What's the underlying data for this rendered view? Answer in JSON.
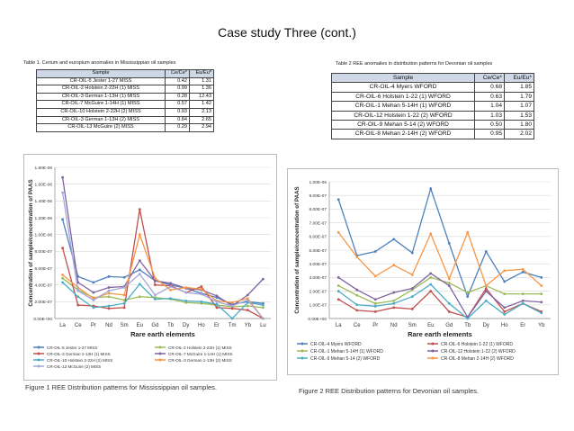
{
  "slide_title": "Case study Three (cont.)",
  "table1": {
    "caption": "Table 1. Cerium and europium anomalies in Mississippian oil samples",
    "headers": [
      "Sample",
      "Ce/Ce*",
      "Eu/Eu*"
    ],
    "rows": [
      [
        "CR-OIL-5 Jester 1-27 MISS",
        "0.42",
        "1.31"
      ],
      [
        "CR-OIL-2 Holstein 2-22H (1) MISS",
        "0.99",
        "1.36"
      ],
      [
        "CR-OIL-3 German 1-13H (1) MISS",
        "0.28",
        "12.43"
      ],
      [
        "CR-OIL-7 McGuire 1-14H (1) MISS",
        "0.57",
        "1.42"
      ],
      [
        "CR-OIL-10 Holstein 2-22H (2) MISS",
        "0.93",
        "2.13"
      ],
      [
        "CR-OIL-3 German 1-13H (2) MISS",
        "0.84",
        "2.65"
      ],
      [
        "CR-OIL-13 McGuire (2) MISS",
        "0.29",
        "2.94"
      ]
    ]
  },
  "table2": {
    "caption": "Table 2 REE anomalies in distribution patterns for Devonian oil samples",
    "headers": [
      "Sample",
      "Ce/Ce*",
      "Eu/Eu*"
    ],
    "rows": [
      [
        "CR-OIL-4 Myers WFORD",
        "0.68",
        "1.85"
      ],
      [
        "CR-OIL-6 Holstein 1-22 (1) WFORD",
        "0.63",
        "1.79"
      ],
      [
        "CR-OIL-1 Mehan 5-14H (1) WFORD",
        "1.04",
        "1.07"
      ],
      [
        "CR-OIL-12 Holstein 1-22 (2) WFORD",
        "1.03",
        "1.53"
      ],
      [
        "CR-OIL-9 Mehan 5-14 (2) WFORD",
        "0.50",
        "1.80"
      ],
      [
        "CR-OIL-8 Mehan 2-14H (2) WFORD",
        "0.95",
        "2.02"
      ]
    ]
  },
  "figure1_caption": "Figure 1 REE Distribution patterns for Mississippian oil samples.",
  "figure2_caption": "Figure 2 REE Distribution patterns for Devonian oil samples.",
  "chart_data": [
    {
      "type": "line",
      "title": "",
      "xlabel": "Rare earth elements",
      "ylabel": "Concentration of sample/concentration of PAAS",
      "categories": [
        "La",
        "Ce",
        "Pr",
        "Nd",
        "Sm",
        "Eu",
        "Gd",
        "Tb",
        "Dy",
        "Ho",
        "Er",
        "Tm",
        "Yb",
        "Lu"
      ],
      "ylim": [
        0,
        1.8e-06
      ],
      "ytick_labels": [
        "0.00E+00",
        "2.00E-07",
        "4.00E-07",
        "6.00E-07",
        "8.00E-07",
        "1.00E-06",
        "1.20E-06",
        "1.40E-06",
        "1.60E-06",
        "1.80E-06"
      ],
      "grid": true,
      "legend": "bottom",
      "series": [
        {
          "name": "CR-OIL-5 Jester 1-27 MISS",
          "color": "#4f81bd",
          "values": [
            1.18e-06,
            5e-07,
            4.3e-07,
            5e-07,
            4.9e-07,
            5.8e-07,
            4.5e-07,
            4e-07,
            3.6e-07,
            3e-07,
            2.5e-07,
            1.7e-07,
            2e-07,
            1.8e-07
          ]
        },
        {
          "name": "CR-OIL-2 Holstein 2-22H (1) MISS",
          "color": "#9bbb59",
          "values": [
            4.8e-07,
            3.4e-07,
            2.5e-07,
            2.6e-07,
            2.2e-07,
            2.6e-07,
            2.5e-07,
            2.3e-07,
            1.9e-07,
            1.8e-07,
            1.6e-07,
            1.4e-07,
            1.5e-07,
            1.3e-07
          ]
        },
        {
          "name": "CR-OIL-3 German 1-13H (1) MISS",
          "color": "#c0504d",
          "values": [
            8.4e-07,
            1.6e-07,
            1.5e-07,
            1.2e-07,
            1.3e-07,
            1.3e-06,
            4e-07,
            3.9e-07,
            3.1e-07,
            3.8e-07,
            1.3e-07,
            1.2e-07,
            1e-07,
            0
          ]
        },
        {
          "name": "CR-OIL-7 McGuire 1-14H (1) MISS",
          "color": "#8064a2",
          "values": [
            1.68e-06,
            4.3e-07,
            3.1e-07,
            3.7e-07,
            3.8e-07,
            6.9e-07,
            4.5e-07,
            4.2e-07,
            3.6e-07,
            3.4e-07,
            2.7e-07,
            1.5e-07,
            2.8e-07,
            4.7e-07
          ]
        },
        {
          "name": "CR-OIL-10 Holstein 2-22H (2) MISS",
          "color": "#4bacc6",
          "values": [
            4.3e-07,
            2.6e-07,
            1.3e-07,
            1.5e-07,
            1.8e-07,
            4.1e-07,
            2.3e-07,
            2.4e-07,
            2.1e-07,
            2e-07,
            1.7e-07,
            0,
            1.9e-07,
            1.6e-07
          ]
        },
        {
          "name": "CR-OIL-3 German 1-13H (2) MISS",
          "color": "#f79646",
          "values": [
            5.2e-07,
            3.7e-07,
            2.4e-07,
            3e-07,
            2.8e-07,
            1e-06,
            4.8e-07,
            3.4e-07,
            3.7e-07,
            3.5e-07,
            2.1e-07,
            1.9e-07,
            2.4e-07,
            0
          ]
        },
        {
          "name": "CR-OIL-13 McGuire (2) MISS",
          "color": "#a6a6d9",
          "values": [
            1.5e-06,
            3.3e-07,
            2.2e-07,
            3.3e-07,
            3.7e-07,
            5.3e-07,
            2.8e-07,
            3.8e-07,
            3.1e-07,
            2.9e-07,
            2e-07,
            1.5e-07,
            2.2e-07,
            0
          ]
        }
      ]
    },
    {
      "type": "line",
      "title": "",
      "xlabel": "Rare earth elements",
      "ylabel": "Concentration of sample/concentration of PAAS",
      "categories": [
        "La",
        "Ce",
        "Pr",
        "Nd",
        "Sm",
        "Eu",
        "Gd",
        "Tb",
        "Dy",
        "Ho",
        "Er",
        "Yb"
      ],
      "ylim": [
        0,
        1e-06
      ],
      "ytick_labels": [
        "0.00E+00",
        "1.00E-07",
        "2.00E-07",
        "3.00E-07",
        "4.00E-07",
        "5.00E-07",
        "6.00E-07",
        "7.00E-07",
        "8.00E-07",
        "9.00E-07",
        "1.00E-06"
      ],
      "grid": true,
      "legend": "bottom",
      "series": [
        {
          "name": "CR-OIL-4 Myers WFORD",
          "color": "#4f81bd",
          "values": [
            8.7e-07,
            4.6e-07,
            4.9e-07,
            5.8e-07,
            4.8e-07,
            9.5e-07,
            5.5e-07,
            1.6e-07,
            4.9e-07,
            2.7e-07,
            3.4e-07,
            3e-07
          ]
        },
        {
          "name": "CR-OIL-6 Holstein 1-22 (1) WFORD",
          "color": "#c0504d",
          "values": [
            1.4e-07,
            6e-08,
            5e-08,
            8e-08,
            7e-08,
            2e-07,
            5e-08,
            1e-08,
            2.2e-07,
            5e-08,
            1.1e-07,
            5e-08
          ]
        },
        {
          "name": "CR-OIL-1 Mehan 5-14H (1) WFORD",
          "color": "#9bbb59",
          "values": [
            2.4e-07,
            1.7e-07,
            1.1e-07,
            1.3e-07,
            2.1e-07,
            3e-07,
            2.6e-07,
            1.9e-07,
            2.4e-07,
            1.8e-07,
            1.8e-07,
            1.8e-07
          ]
        },
        {
          "name": "CR-OIL-12 Holstein 1-22 (2) WFORD",
          "color": "#8064a2",
          "values": [
            3e-07,
            2.1e-07,
            1.4e-07,
            1.9e-07,
            2.2e-07,
            3.3e-07,
            2.4e-07,
            1e-08,
            2e-07,
            8e-08,
            1.3e-07,
            1.2e-07
          ]
        },
        {
          "name": "CR-OIL-9 Mehan 5-14 (2) WFORD",
          "color": "#4bacc6",
          "values": [
            2e-07,
            1e-07,
            9e-08,
            1.1e-07,
            1.6e-07,
            2.5e-07,
            1.1e-07,
            0,
            1.3e-07,
            3e-08,
            1.1e-07,
            4e-08
          ]
        },
        {
          "name": "CR-OIL-8 Mehan 2-14H (2) WFORD",
          "color": "#f79646",
          "values": [
            6.3e-07,
            4.5e-07,
            3.1e-07,
            3.9e-07,
            3.2e-07,
            6.2e-07,
            2.9e-07,
            6.3e-07,
            2.4e-07,
            3.5e-07,
            3.6e-07,
            2.4e-07
          ]
        }
      ]
    }
  ]
}
